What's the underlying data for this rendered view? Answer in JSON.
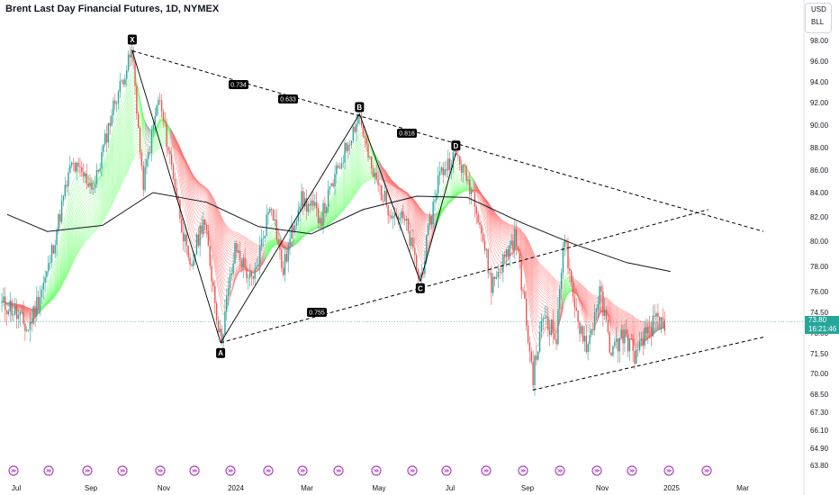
{
  "header": {
    "title": "Brent Last Day Financial Futures, 1D, NYMEX"
  },
  "currency": {
    "code": "USD",
    "unit": "BLL"
  },
  "last_price": {
    "value": "73.80",
    "countdown": "16:21:46"
  },
  "colors": {
    "up": "#26a69a",
    "down": "#ef5350",
    "tag": "#26a69a",
    "ribbon_bull": "#66ff66",
    "ribbon_bear": "#ff6b6b",
    "ribbon_neutral": "#9e9e9e",
    "ma": "#131722",
    "pattern": "#000000",
    "event_icon": "#ab47bc"
  },
  "chart_data": {
    "type": "candlestick",
    "ylim": [
      63.8,
      98.0
    ],
    "y_ticks": [
      "98.00",
      "96.00",
      "94.00",
      "92.00",
      "90.00",
      "88.00",
      "86.00",
      "84.00",
      "82.00",
      "80.00",
      "78.00",
      "76.00",
      "74.50",
      "73.00",
      "71.50",
      "70.00",
      "68.50",
      "67.30",
      "66.10",
      "64.90",
      "63.80"
    ],
    "x_ticks": [
      "Jul",
      "Sep",
      "Nov",
      "2024",
      "Mar",
      "May",
      "Jul",
      "Sep",
      "Nov",
      "2025",
      "Mar"
    ],
    "harmonic_points": [
      {
        "label": "X",
        "date": "2023-09-27",
        "price": 97.0
      },
      {
        "label": "A",
        "date": "2023-12-13",
        "price": 72.3
      },
      {
        "label": "B",
        "date": "2024-04-12",
        "price": 91.0
      },
      {
        "label": "C",
        "date": "2024-06-04",
        "price": 76.8
      },
      {
        "label": "D",
        "date": "2024-07-05",
        "price": 87.5
      }
    ],
    "ratios": [
      "0.734",
      "0.633",
      "0.818",
      "0.755"
    ],
    "moving_average": "200-day",
    "ribbon": "EMA ribbon, green when bullish, red when bearish",
    "event_icons": 20
  }
}
